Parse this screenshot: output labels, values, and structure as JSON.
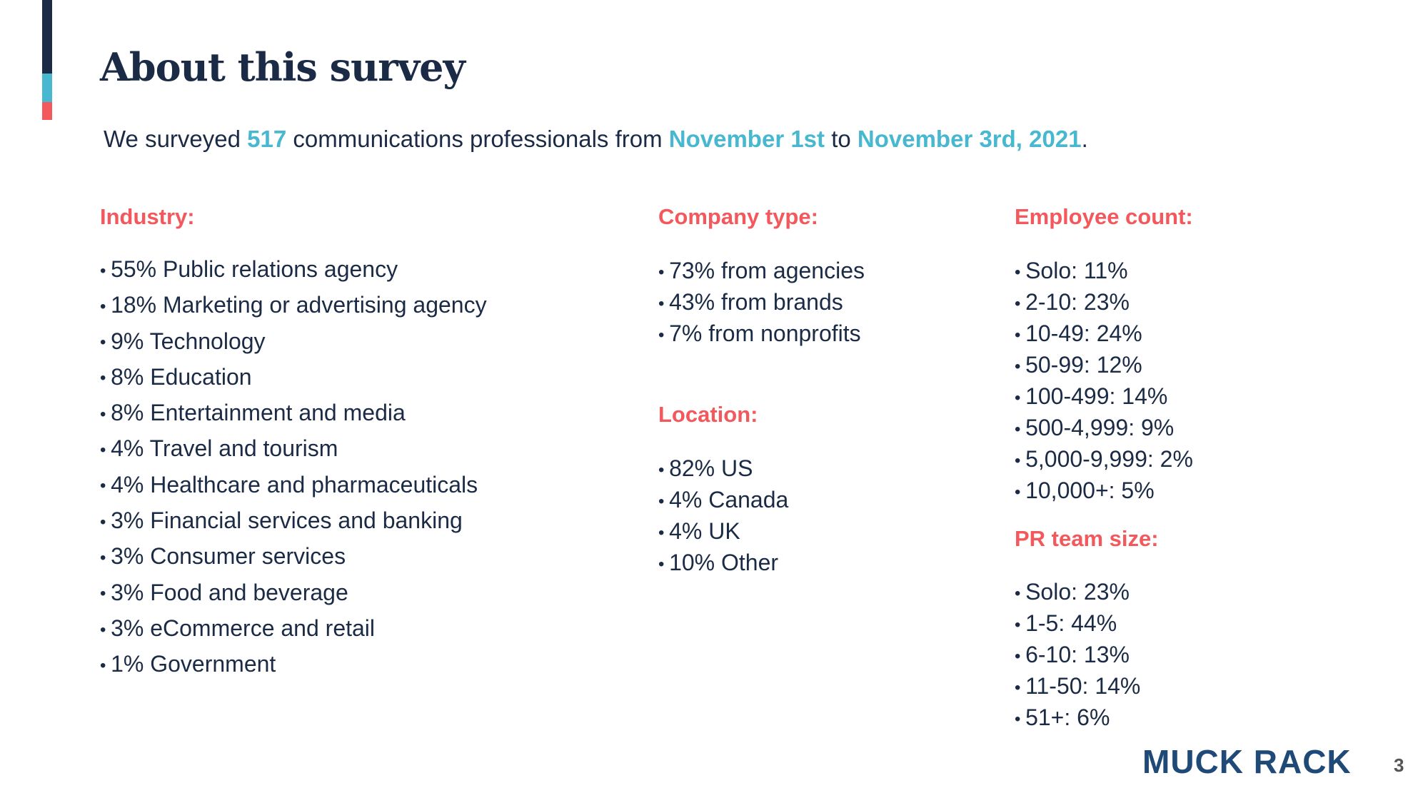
{
  "colors": {
    "navy": "#1b2b45",
    "teal": "#47b8cf",
    "coral": "#f2585c",
    "logo": "#1f4a78"
  },
  "title": "About this survey",
  "subtitle": {
    "p1": "We surveyed ",
    "count": "517",
    "p2": " communications professionals from ",
    "start": "November 1st",
    "p3": " to ",
    "end": "November 3rd, 2021",
    "p4": "."
  },
  "industry": {
    "heading": "Industry:",
    "items": [
      "55% Public relations agency",
      "18% Marketing or advertising agency",
      "9% Technology",
      "8% Education",
      "8% Entertainment and media",
      "4% Travel and tourism",
      "4% Healthcare and pharmaceuticals",
      "3% Financial services and banking",
      "3% Consumer services",
      "3% Food and beverage",
      "3% eCommerce and retail",
      "1% Government"
    ]
  },
  "company_type": {
    "heading": "Company type:",
    "items": [
      "73% from agencies",
      "43% from brands",
      "7% from nonprofits"
    ]
  },
  "location": {
    "heading": "Location:",
    "items": [
      "82% US",
      "4% Canada",
      "4% UK",
      "10% Other"
    ]
  },
  "employee_count": {
    "heading": "Employee count:",
    "items": [
      "Solo: 11%",
      "2-10: 23%",
      "10-49: 24%",
      "50-99: 12%",
      "100-499: 14%",
      "500-4,999: 9%",
      "5,000-9,999: 2%",
      "10,000+: 5%"
    ]
  },
  "pr_team_size": {
    "heading": "PR team size:",
    "items": [
      "Solo: 23%",
      "1-5: 44%",
      "6-10: 13%",
      "11-50: 14%",
      "51+: 6%"
    ]
  },
  "logo": "MUCK RACK",
  "page_number": "3"
}
